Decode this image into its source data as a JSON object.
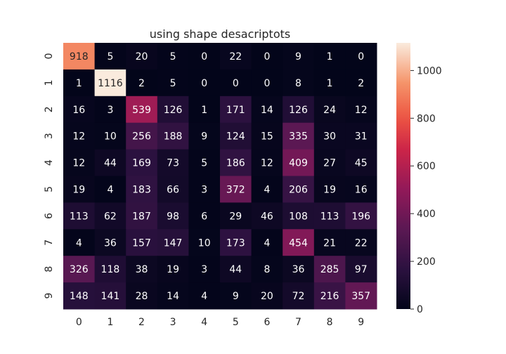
{
  "chart_data": {
    "type": "heatmap",
    "title": "using shape desacriptots",
    "x_labels": [
      "0",
      "1",
      "2",
      "3",
      "4",
      "5",
      "6",
      "7",
      "8",
      "9"
    ],
    "y_labels": [
      "0",
      "1",
      "2",
      "3",
      "4",
      "5",
      "6",
      "7",
      "8",
      "9"
    ],
    "values": [
      [
        918,
        5,
        20,
        5,
        0,
        22,
        0,
        9,
        1,
        0
      ],
      [
        1,
        1116,
        2,
        5,
        0,
        0,
        0,
        8,
        1,
        2
      ],
      [
        16,
        3,
        539,
        126,
        1,
        171,
        14,
        126,
        24,
        12
      ],
      [
        12,
        10,
        256,
        188,
        9,
        124,
        15,
        335,
        30,
        31
      ],
      [
        12,
        44,
        169,
        73,
        5,
        186,
        12,
        409,
        27,
        45
      ],
      [
        19,
        4,
        183,
        66,
        3,
        372,
        4,
        206,
        19,
        16
      ],
      [
        113,
        62,
        187,
        98,
        6,
        29,
        46,
        108,
        113,
        196
      ],
      [
        4,
        36,
        157,
        147,
        10,
        173,
        4,
        454,
        21,
        22
      ],
      [
        326,
        118,
        38,
        19,
        3,
        44,
        8,
        36,
        285,
        97
      ],
      [
        148,
        141,
        28,
        14,
        4,
        9,
        20,
        72,
        216,
        357
      ]
    ],
    "vmin": 0,
    "vmax": 1116,
    "colorbar_ticks": [
      0,
      200,
      400,
      600,
      800,
      1000
    ],
    "colormap": "rocket",
    "annotations": true,
    "colorbar": "right"
  }
}
